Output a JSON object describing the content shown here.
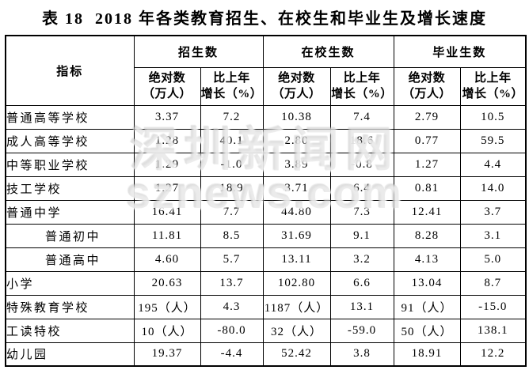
{
  "title": "表 18  2018 年各类教育招生、在校生和毕业生及增长速度",
  "watermark": {
    "line1": "深圳新闻网",
    "line2": "sznews.com"
  },
  "table": {
    "indicator_header": "指标",
    "groups": [
      {
        "label": "招生数"
      },
      {
        "label": "在校生数"
      },
      {
        "label": "毕业生数"
      }
    ],
    "sub_columns": [
      {
        "line1": "绝对数",
        "line2": "（万人）"
      },
      {
        "line1": "比上年",
        "line2": "增长（%）"
      }
    ],
    "rows": [
      {
        "label": "普通高等学校",
        "indent": false,
        "values": [
          "3.37",
          "7.2",
          "10.38",
          "7.4",
          "2.79",
          "10.5"
        ]
      },
      {
        "label": "成人高等学校",
        "indent": false,
        "values": [
          "1.28",
          "40.1",
          "2.80",
          "18.6",
          "0.77",
          "59.5"
        ]
      },
      {
        "label": "中等职业学校",
        "indent": false,
        "values": [
          "1.29",
          "-1.0",
          "3.89",
          "-0.8",
          "1.27",
          "4.4"
        ]
      },
      {
        "label": "技工学校",
        "indent": false,
        "values": [
          "1.27",
          "18.9",
          "3.71",
          "6.4",
          "0.81",
          "14.0"
        ]
      },
      {
        "label": "普通中学",
        "indent": false,
        "values": [
          "16.41",
          "7.7",
          "44.80",
          "7.3",
          "12.41",
          "3.7"
        ]
      },
      {
        "label": "普通初中",
        "indent": true,
        "values": [
          "11.81",
          "8.5",
          "31.69",
          "9.1",
          "8.28",
          "3.1"
        ]
      },
      {
        "label": "普通高中",
        "indent": true,
        "values": [
          "4.60",
          "5.7",
          "13.11",
          "3.2",
          "4.13",
          "5.0"
        ]
      },
      {
        "label": "小学",
        "indent": false,
        "values": [
          "20.63",
          "13.7",
          "102.80",
          "6.6",
          "13.04",
          "8.7"
        ]
      },
      {
        "label": "特殊教育学校",
        "indent": false,
        "values": [
          "195（人）",
          "4.3",
          "1187（人）",
          "13.1",
          "91（人）",
          "-15.0"
        ]
      },
      {
        "label": "工读特校",
        "indent": false,
        "values": [
          "10（人）",
          "-80.0",
          "32（人）",
          "-59.0",
          "50（人）",
          "138.1"
        ]
      },
      {
        "label": "幼儿园",
        "indent": false,
        "values": [
          "19.37",
          "-4.4",
          "52.42",
          "3.8",
          "18.91",
          "12.2"
        ]
      }
    ]
  }
}
